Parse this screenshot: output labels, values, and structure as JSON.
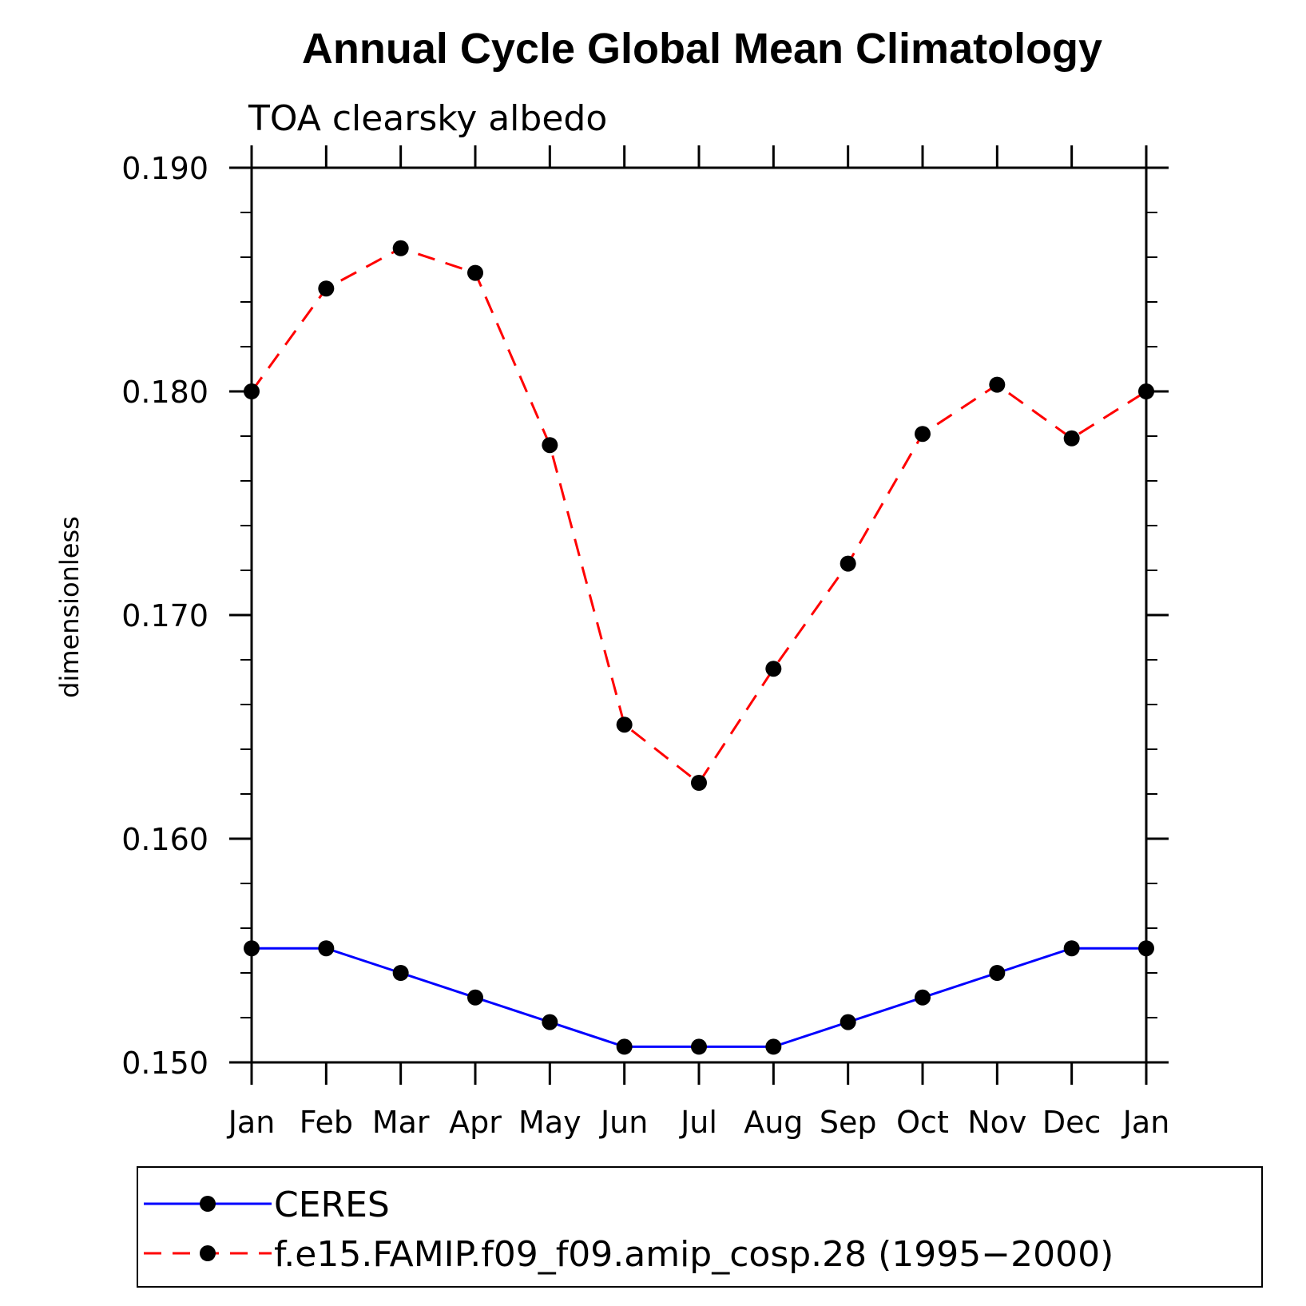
{
  "chart_data": {
    "type": "line",
    "title": "Annual Cycle Global Mean Climatology",
    "subtitle": "TOA clearsky albedo",
    "ylabel": "dimensionless",
    "xlabel": "",
    "categories": [
      "Jan",
      "Feb",
      "Mar",
      "Apr",
      "May",
      "Jun",
      "Jul",
      "Aug",
      "Sep",
      "Oct",
      "Nov",
      "Dec",
      "Jan"
    ],
    "ylim": [
      0.15,
      0.19
    ],
    "yticks": [
      "0.150",
      "0.160",
      "0.170",
      "0.180",
      "0.190"
    ],
    "grid": false,
    "legend_position": "bottom",
    "series": [
      {
        "name": "CERES",
        "color": "#0000ff",
        "style": "solid",
        "values": [
          0.1551,
          0.1551,
          0.154,
          0.1529,
          0.1518,
          0.1507,
          0.1507,
          0.1507,
          0.1518,
          0.1529,
          0.154,
          0.1551,
          0.1551
        ]
      },
      {
        "name": "f.e15.FAMIP.f09_f09.amip_cosp.28 (1995−2000)",
        "color": "#ff0000",
        "style": "dashed",
        "values": [
          0.18,
          0.1846,
          0.1864,
          0.1853,
          0.1776,
          0.1651,
          0.1625,
          0.1676,
          0.1723,
          0.1781,
          0.1803,
          0.1779,
          0.18
        ]
      }
    ]
  }
}
